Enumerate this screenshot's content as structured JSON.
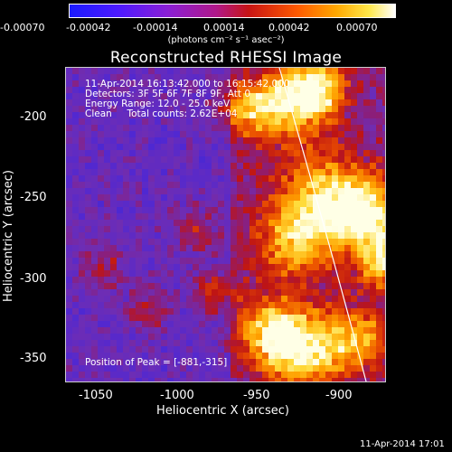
{
  "colorbar": {
    "ticks": [
      "-0.00070",
      "-0.00042",
      "-0.00014",
      "0.00014",
      "0.00042",
      "0.00070"
    ],
    "unit": "(photons cm⁻² s⁻¹ asec⁻²)"
  },
  "title": "Reconstructed RHESSI Image",
  "info": {
    "line1": "11-Apr-2014 16:13:42.000 to 16:15:42.000",
    "line2": "Detectors: 3F 5F 6F 7F 8F 9F, Att 0",
    "line3": "Energy Range: 12.0 - 25.0 keV",
    "line4": "Clean     Total counts: 2.62E+04",
    "peak": "Position of Peak = [-881,-315]"
  },
  "axes": {
    "xlabel": "Heliocentric X (arcsec)",
    "ylabel": "Heliocentric Y (arcsec)",
    "xticks": [
      "-1050",
      "-1000",
      "-950",
      "-900"
    ],
    "yticks": [
      "-200",
      "-250",
      "-300",
      "-350"
    ]
  },
  "timestamp": "11-Apr-2014 17:01",
  "colors": {
    "background": "#000000",
    "limb_line": "#ffffff"
  }
}
